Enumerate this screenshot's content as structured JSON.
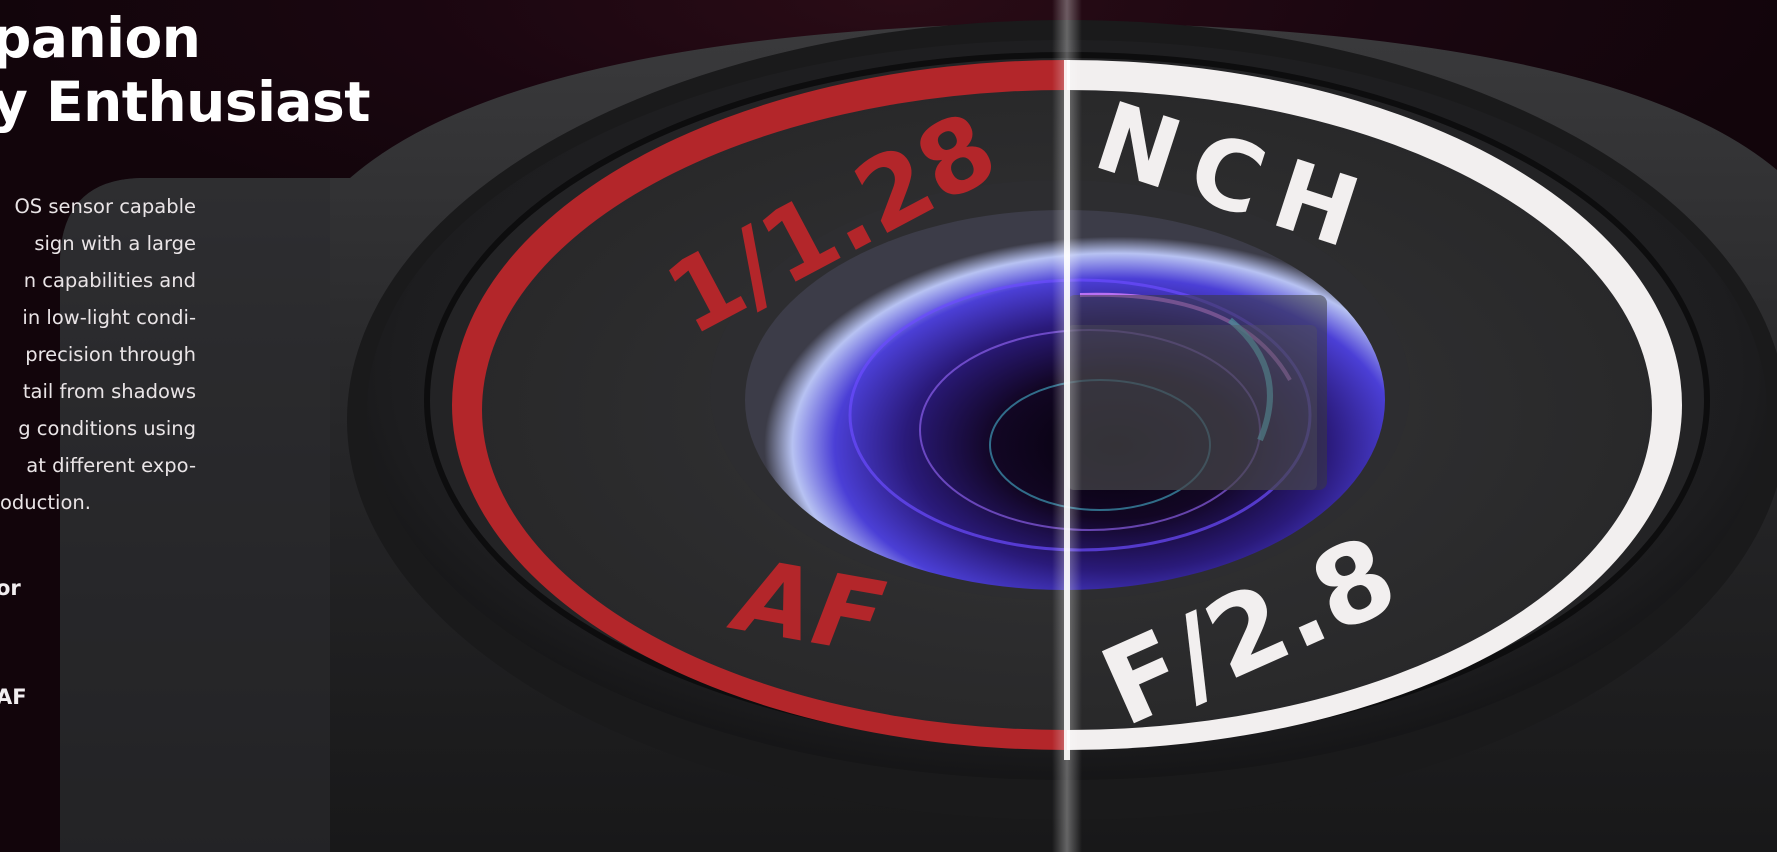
{
  "headline": {
    "line1": "panion",
    "line2": "y Enthusiast"
  },
  "description": {
    "lines": [
      "OS sensor capable",
      "sign with a large",
      "n capabilities and",
      "in low-light condi-",
      "precision through",
      "tail from shadows",
      "g conditions using",
      "at different expo-",
      "oduction."
    ]
  },
  "features": [
    "or",
    "AF"
  ],
  "lens_ring": {
    "top_left": "1/1.28",
    "top_right": "NCH",
    "bottom_left": "AF",
    "bottom_right": "F/2.8"
  },
  "colors": {
    "accent_red": "#b3262a",
    "ring_white": "#f2efef",
    "background": "#16070d"
  }
}
